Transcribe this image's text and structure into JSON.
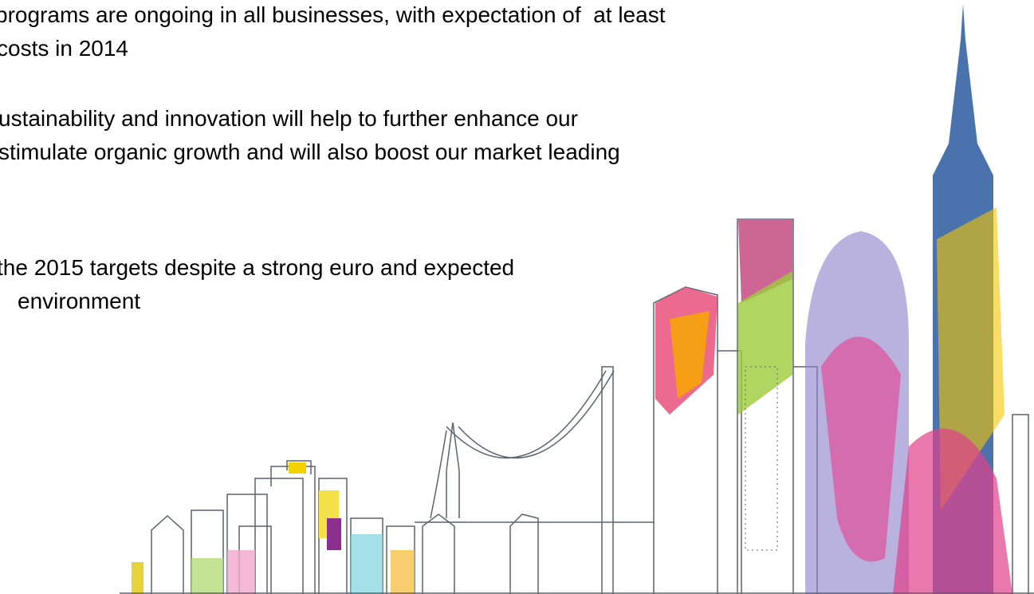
{
  "paragraphs": [
    [
      "programs are ongoing in all businesses, with expectation of  at least",
      "costs in 2014"
    ],
    [
      "ustainability and innovation will help to further enhance our",
      "stimulate organic growth and will also boost our market leading"
    ],
    [
      "the 2015 targets despite a strong euro and expected",
      "environment"
    ]
  ]
}
